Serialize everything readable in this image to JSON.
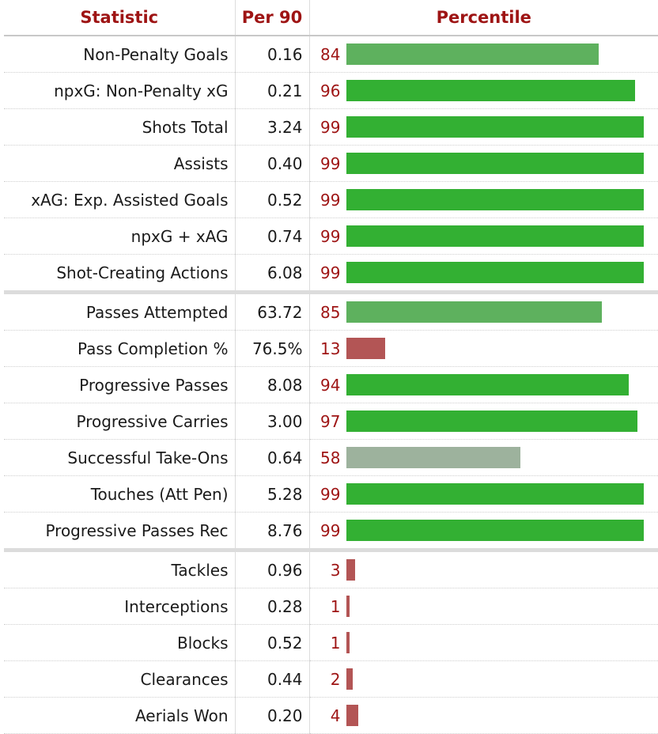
{
  "headers": {
    "statistic": "Statistic",
    "per90": "Per 90",
    "percentile": "Percentile"
  },
  "groups": [
    [
      {
        "stat": "Non-Penalty Goals",
        "per90": "0.16",
        "percentile": 84
      },
      {
        "stat": "npxG: Non-Penalty xG",
        "per90": "0.21",
        "percentile": 96
      },
      {
        "stat": "Shots Total",
        "per90": "3.24",
        "percentile": 99
      },
      {
        "stat": "Assists",
        "per90": "0.40",
        "percentile": 99
      },
      {
        "stat": "xAG: Exp. Assisted Goals",
        "per90": "0.52",
        "percentile": 99
      },
      {
        "stat": "npxG + xAG",
        "per90": "0.74",
        "percentile": 99
      },
      {
        "stat": "Shot-Creating Actions",
        "per90": "6.08",
        "percentile": 99
      }
    ],
    [
      {
        "stat": "Passes Attempted",
        "per90": "63.72",
        "percentile": 85
      },
      {
        "stat": "Pass Completion %",
        "per90": "76.5%",
        "percentile": 13
      },
      {
        "stat": "Progressive Passes",
        "per90": "8.08",
        "percentile": 94
      },
      {
        "stat": "Progressive Carries",
        "per90": "3.00",
        "percentile": 97
      },
      {
        "stat": "Successful Take-Ons",
        "per90": "0.64",
        "percentile": 58
      },
      {
        "stat": "Touches (Att Pen)",
        "per90": "5.28",
        "percentile": 99
      },
      {
        "stat": "Progressive Passes Rec",
        "per90": "8.76",
        "percentile": 99
      }
    ],
    [
      {
        "stat": "Tackles",
        "per90": "0.96",
        "percentile": 3
      },
      {
        "stat": "Interceptions",
        "per90": "0.28",
        "percentile": 1
      },
      {
        "stat": "Blocks",
        "per90": "0.52",
        "percentile": 1
      },
      {
        "stat": "Clearances",
        "per90": "0.44",
        "percentile": 2
      },
      {
        "stat": "Aerials Won",
        "per90": "0.20",
        "percentile": 4
      }
    ]
  ],
  "colors": {
    "elite": "#33b033",
    "high": "#5eb15e",
    "average": "#9db29d",
    "low": "#b35555",
    "header_text": "#9e1414",
    "percentile_text": "#9e1414"
  }
}
